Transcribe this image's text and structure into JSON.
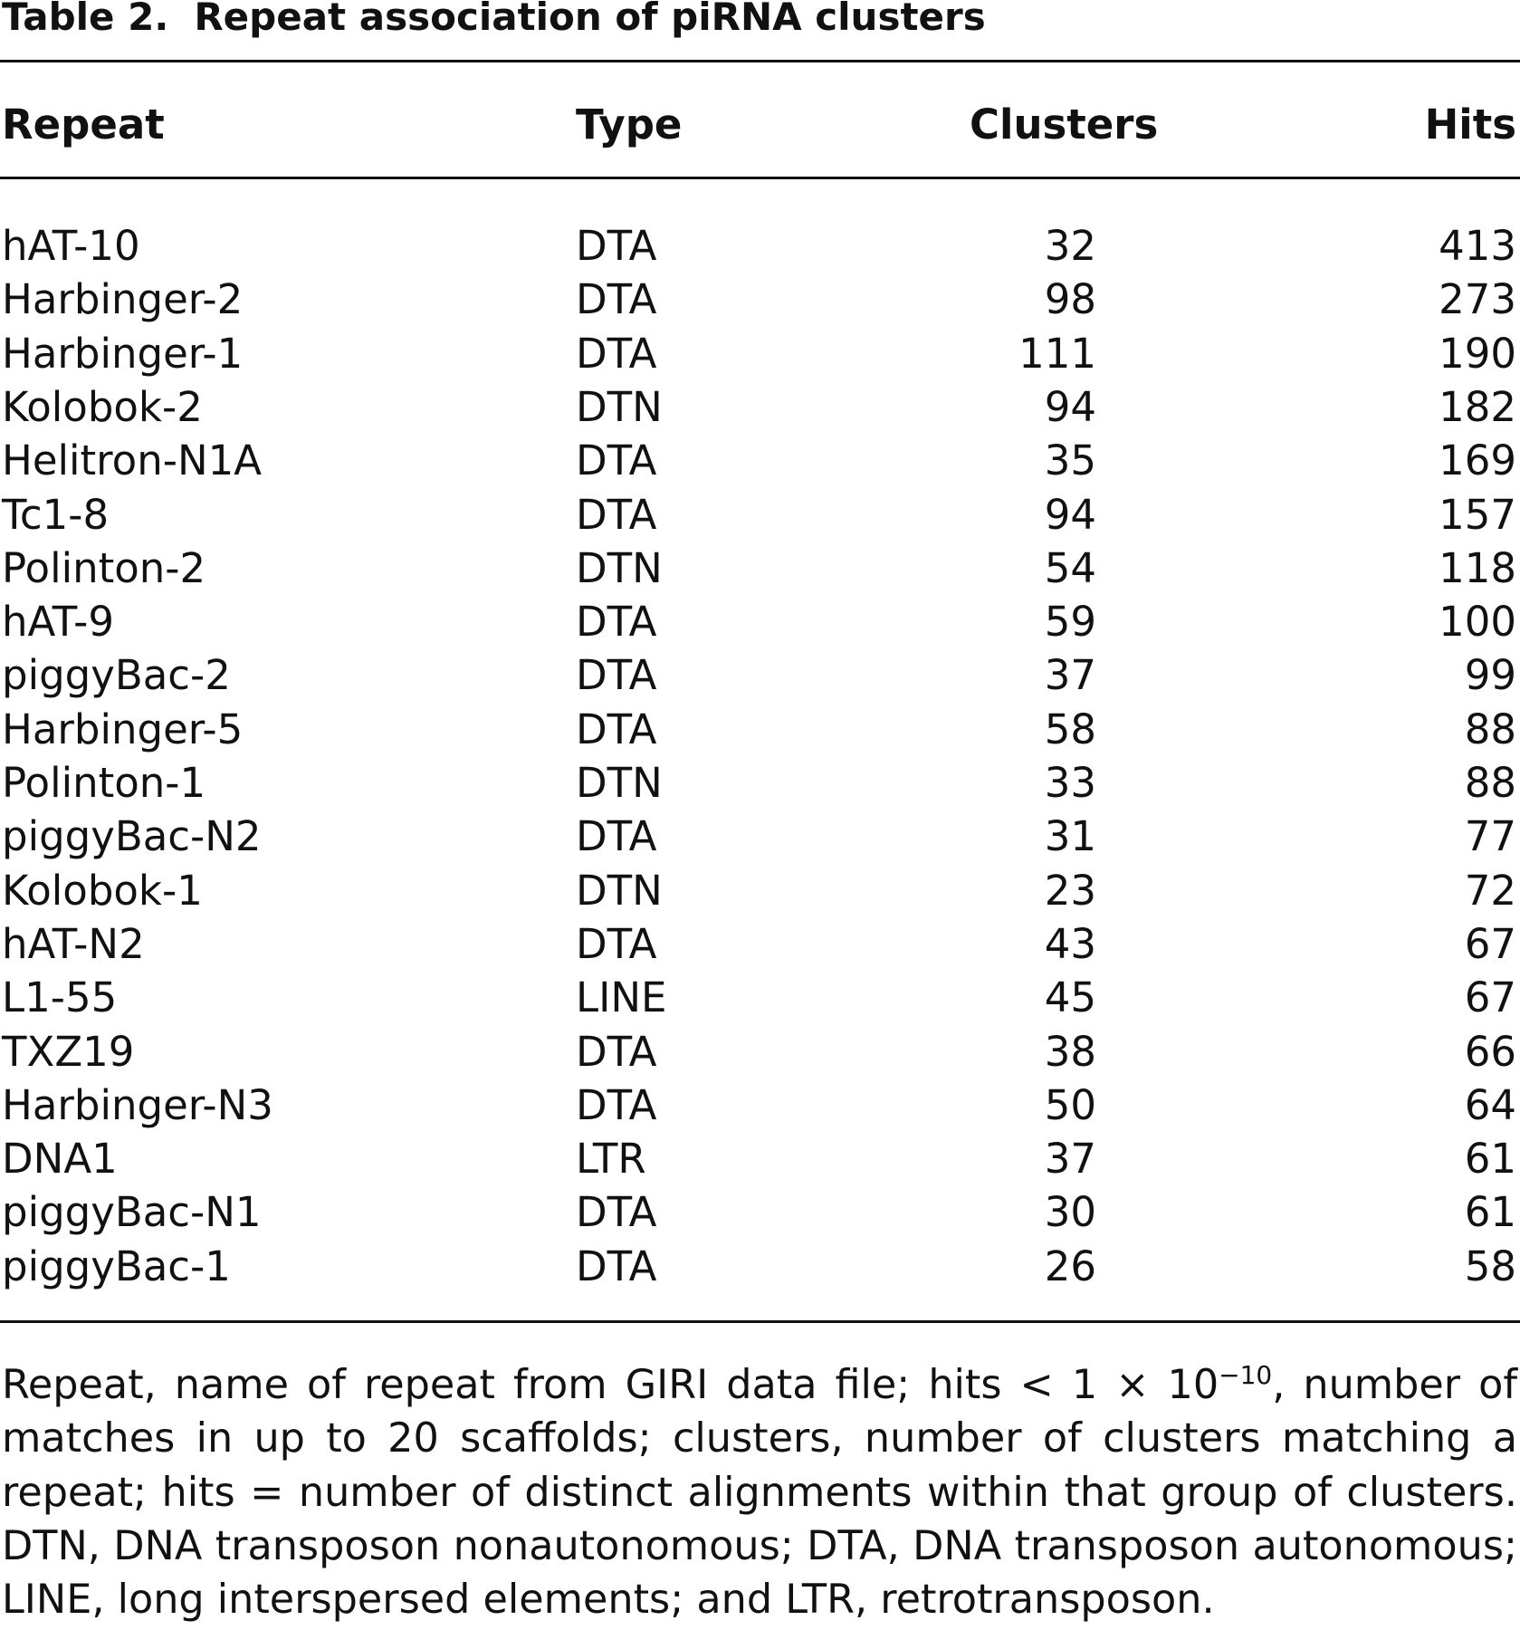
{
  "table": {
    "label": "Table 2.",
    "title": "Repeat association of piRNA clusters",
    "headers": [
      "Repeat",
      "Type",
      "Clusters",
      "Hits"
    ],
    "rows": [
      [
        "hAT-10",
        "DTA",
        "32",
        "413"
      ],
      [
        "Harbinger-2",
        "DTA",
        "98",
        "273"
      ],
      [
        "Harbinger-1",
        "DTA",
        "111",
        "190"
      ],
      [
        "Kolobok-2",
        "DTN",
        "94",
        "182"
      ],
      [
        "Helitron-N1A",
        "DTA",
        "35",
        "169"
      ],
      [
        "Tc1-8",
        "DTA",
        "94",
        "157"
      ],
      [
        "Polinton-2",
        "DTN",
        "54",
        "118"
      ],
      [
        "hAT-9",
        "DTA",
        "59",
        "100"
      ],
      [
        "piggyBac-2",
        "DTA",
        "37",
        "99"
      ],
      [
        "Harbinger-5",
        "DTA",
        "58",
        "88"
      ],
      [
        "Polinton-1",
        "DTN",
        "33",
        "88"
      ],
      [
        "piggyBac-N2",
        "DTA",
        "31",
        "77"
      ],
      [
        "Kolobok-1",
        "DTN",
        "23",
        "72"
      ],
      [
        "hAT-N2",
        "DTA",
        "43",
        "67"
      ],
      [
        "L1-55",
        "LINE",
        "45",
        "67"
      ],
      [
        "TXZ19",
        "DTA",
        "38",
        "66"
      ],
      [
        "Harbinger-N3",
        "DTA",
        "50",
        "64"
      ],
      [
        "DNA1",
        "LTR",
        "37",
        "61"
      ],
      [
        "piggyBac-N1",
        "DTA",
        "30",
        "61"
      ],
      [
        "piggyBac-1",
        "DTA",
        "26",
        "58"
      ]
    ],
    "footnote_pre": "Repeat, name of repeat from GIRI data file; hits < 1 × 10",
    "footnote_exp": "−10",
    "footnote_post": ", number of matches in up to 20 scaffolds; clusters, number of clusters matching a repeat; hits = number of distinct alignments within that group of clusters. DTN, DNA transposon nonautonomous; DTA, DNA transposon autonomous; LINE, long interspersed elements; and LTR, retrotransposon."
  }
}
